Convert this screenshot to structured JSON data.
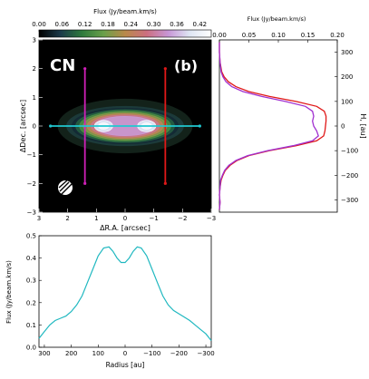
{
  "chart_data": [
    {
      "id": "map",
      "type": "heatmap",
      "colorbar": {
        "label": "Flux (Jy/beam.km/s)",
        "ticks": [
          "0.00",
          "0.06",
          "0.12",
          "0.18",
          "0.24",
          "0.30",
          "0.36",
          "0.42"
        ],
        "range": [
          0,
          0.45
        ],
        "colors": [
          "#000000",
          "#1b3a4a",
          "#2e7a3c",
          "#6aa04a",
          "#b9894a",
          "#cc6f80",
          "#c796d6",
          "#dfe6f4",
          "#ffffff"
        ]
      },
      "xlabel": "ΔR.A. [arcsec]",
      "ylabel": "ΔDec. [arcsec]",
      "xlim": [
        3,
        -3
      ],
      "ylim": [
        -3,
        3
      ],
      "xticks": [
        "3",
        "2",
        "1",
        "0",
        "−1",
        "−2",
        "−3"
      ],
      "yticks": [
        "−3",
        "−2",
        "−1",
        "0",
        "1",
        "2",
        "3"
      ],
      "molecule_label": "CN",
      "panel_label": "(b)",
      "cuts": [
        {
          "name": "magenta",
          "color": "#d020b8",
          "ra": 1.4,
          "dec_range": [
            -2.0,
            2.0
          ]
        },
        {
          "name": "red",
          "color": "#e01818",
          "ra": -1.4,
          "dec_range": [
            -2.0,
            2.0
          ]
        },
        {
          "name": "cyan",
          "color": "#20c8d0",
          "dec": 0.0,
          "ra_range": [
            2.6,
            -2.6
          ]
        }
      ],
      "contour_levels": [
        0.04,
        0.09,
        0.14,
        0.19,
        0.24,
        0.29,
        0.34,
        0.39,
        0.43
      ],
      "peaks_ra": [
        0.75,
        -0.75
      ]
    },
    {
      "id": "vertical-profile",
      "type": "line",
      "top_label": "Flux (Jy/beam.km/s)",
      "xlim": [
        0,
        0.2
      ],
      "xticks": [
        "0.00",
        "0.05",
        "0.10",
        "0.15",
        "0.20"
      ],
      "ylabel": "H, [au]",
      "ylim": [
        -350,
        350
      ],
      "yticks": [
        "−300",
        "−200",
        "−100",
        "0",
        "100",
        "200",
        "300"
      ],
      "series": [
        {
          "color": "#e01818",
          "h": [
            340,
            300,
            260,
            220,
            200,
            180,
            160,
            140,
            120,
            100,
            80,
            60,
            40,
            20,
            0,
            -20,
            -40,
            -60,
            -80,
            -100,
            -120,
            -140,
            -160,
            -180,
            -200,
            -220,
            -250,
            -280,
            -310,
            -340
          ],
          "flux": [
            0.0,
            0.0,
            0.001,
            0.004,
            0.008,
            0.015,
            0.028,
            0.05,
            0.085,
            0.13,
            0.165,
            0.178,
            0.181,
            0.181,
            0.18,
            0.179,
            0.177,
            0.165,
            0.13,
            0.085,
            0.05,
            0.03,
            0.018,
            0.01,
            0.006,
            0.003,
            0.001,
            0.0,
            0.001,
            0.0
          ]
        },
        {
          "color": "#a030d0",
          "h": [
            340,
            300,
            260,
            220,
            200,
            180,
            160,
            140,
            120,
            100,
            80,
            60,
            40,
            20,
            0,
            -20,
            -40,
            -60,
            -80,
            -100,
            -120,
            -140,
            -160,
            -180,
            -200,
            -220,
            -250,
            -280,
            -310,
            -340
          ],
          "flux": [
            0.0,
            0.0,
            0.001,
            0.003,
            0.006,
            0.011,
            0.021,
            0.04,
            0.072,
            0.112,
            0.146,
            0.158,
            0.16,
            0.158,
            0.16,
            0.165,
            0.168,
            0.158,
            0.125,
            0.082,
            0.048,
            0.028,
            0.016,
            0.009,
            0.005,
            0.002,
            0.001,
            0.0,
            0.001,
            0.0
          ]
        }
      ]
    },
    {
      "id": "radial-profile",
      "type": "line",
      "xlabel": "Radius [au]",
      "ylabel": "Flux (Jy/beam.km/s)",
      "xlim": [
        320,
        -320
      ],
      "xticks": [
        "300",
        "200",
        "100",
        "0",
        "−100",
        "−200",
        "−300"
      ],
      "ylim": [
        0,
        0.5
      ],
      "yticks": [
        "0.0",
        "0.1",
        "0.2",
        "0.3",
        "0.4",
        "0.5"
      ],
      "series": [
        {
          "color": "#20b8c0",
          "x": [
            320,
            300,
            280,
            260,
            240,
            220,
            200,
            180,
            160,
            140,
            120,
            100,
            80,
            60,
            45,
            30,
            15,
            0,
            -15,
            -30,
            -45,
            -60,
            -80,
            -100,
            -120,
            -140,
            -160,
            -180,
            -200,
            -220,
            -240,
            -260,
            -280,
            -300,
            -320
          ],
          "y": [
            0.04,
            0.07,
            0.1,
            0.12,
            0.13,
            0.14,
            0.16,
            0.19,
            0.23,
            0.29,
            0.35,
            0.41,
            0.445,
            0.45,
            0.43,
            0.4,
            0.38,
            0.38,
            0.4,
            0.43,
            0.45,
            0.445,
            0.41,
            0.35,
            0.29,
            0.23,
            0.19,
            0.165,
            0.15,
            0.135,
            0.12,
            0.1,
            0.08,
            0.06,
            0.03
          ]
        }
      ]
    }
  ]
}
